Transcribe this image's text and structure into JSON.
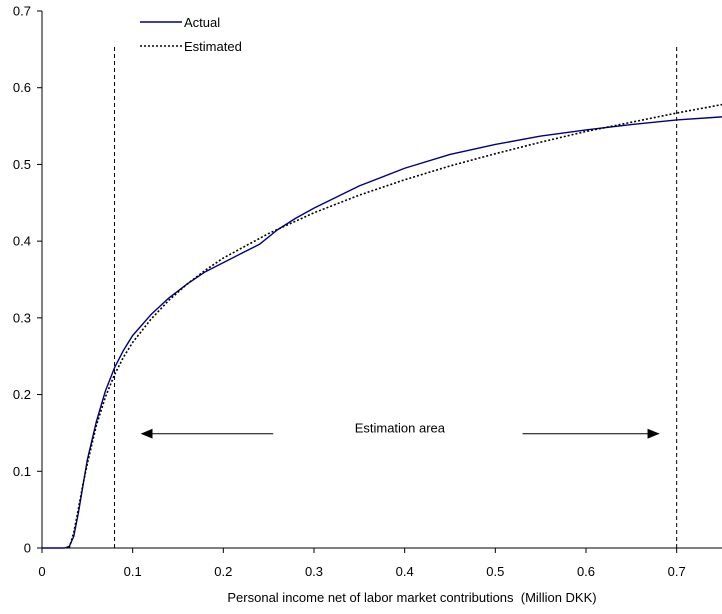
{
  "chart_data": {
    "type": "line",
    "title": "",
    "xlabel": "Personal income net of labor market contributions  (Million DKK)",
    "ylabel": "",
    "xlim": [
      0,
      0.75
    ],
    "ylim": [
      0,
      0.7
    ],
    "x_ticks": [
      0,
      0.1,
      0.2,
      0.3,
      0.4,
      0.5,
      0.6,
      0.7
    ],
    "x_tick_labels": [
      "0",
      "0.1",
      "0.2",
      "0.3",
      "0.4",
      "0.5",
      "0.6",
      "0.7"
    ],
    "y_ticks": [
      0,
      0.1,
      0.2,
      0.3,
      0.4,
      0.5,
      0.6,
      0.7
    ],
    "y_tick_labels": [
      "0",
      "0.1",
      "0.2",
      "0.3",
      "0.4",
      "0.5",
      "0.6",
      "0.7"
    ],
    "grid": false,
    "legend_position": "top-left",
    "series": [
      {
        "name": "Actual",
        "color": "#000080",
        "style": "solid",
        "x": [
          0,
          0.025,
          0.03,
          0.035,
          0.04,
          0.045,
          0.05,
          0.06,
          0.07,
          0.08,
          0.09,
          0.1,
          0.12,
          0.14,
          0.16,
          0.18,
          0.2,
          0.22,
          0.24,
          0.26,
          0.28,
          0.3,
          0.35,
          0.4,
          0.45,
          0.5,
          0.55,
          0.6,
          0.65,
          0.7,
          0.75
        ],
        "y": [
          0,
          0,
          0.002,
          0.015,
          0.045,
          0.08,
          0.115,
          0.165,
          0.205,
          0.235,
          0.258,
          0.277,
          0.304,
          0.326,
          0.344,
          0.36,
          0.372,
          0.384,
          0.396,
          0.415,
          0.43,
          0.443,
          0.472,
          0.495,
          0.513,
          0.526,
          0.537,
          0.545,
          0.552,
          0.558,
          0.562
        ]
      },
      {
        "name": "Estimated",
        "color": "#000000",
        "style": "dotted",
        "x": [
          0.03,
          0.035,
          0.04,
          0.045,
          0.05,
          0.06,
          0.07,
          0.08,
          0.09,
          0.1,
          0.12,
          0.14,
          0.16,
          0.18,
          0.2,
          0.25,
          0.3,
          0.35,
          0.4,
          0.45,
          0.5,
          0.55,
          0.6,
          0.65,
          0.7,
          0.75
        ],
        "y": [
          0.0,
          0.02,
          0.05,
          0.082,
          0.11,
          0.16,
          0.197,
          0.226,
          0.249,
          0.268,
          0.298,
          0.323,
          0.344,
          0.362,
          0.378,
          0.41,
          0.437,
          0.46,
          0.48,
          0.498,
          0.514,
          0.529,
          0.543,
          0.555,
          0.567,
          0.578
        ]
      }
    ],
    "reference_lines": [
      {
        "x": 0.08,
        "style": "dashed"
      },
      {
        "x": 0.7,
        "style": "dashed"
      }
    ],
    "annotation": {
      "text": "Estimation area",
      "y": 0.149,
      "arrow_left_from": 0.255,
      "arrow_left_to": 0.11,
      "arrow_right_from": 0.53,
      "arrow_right_to": 0.68
    }
  }
}
